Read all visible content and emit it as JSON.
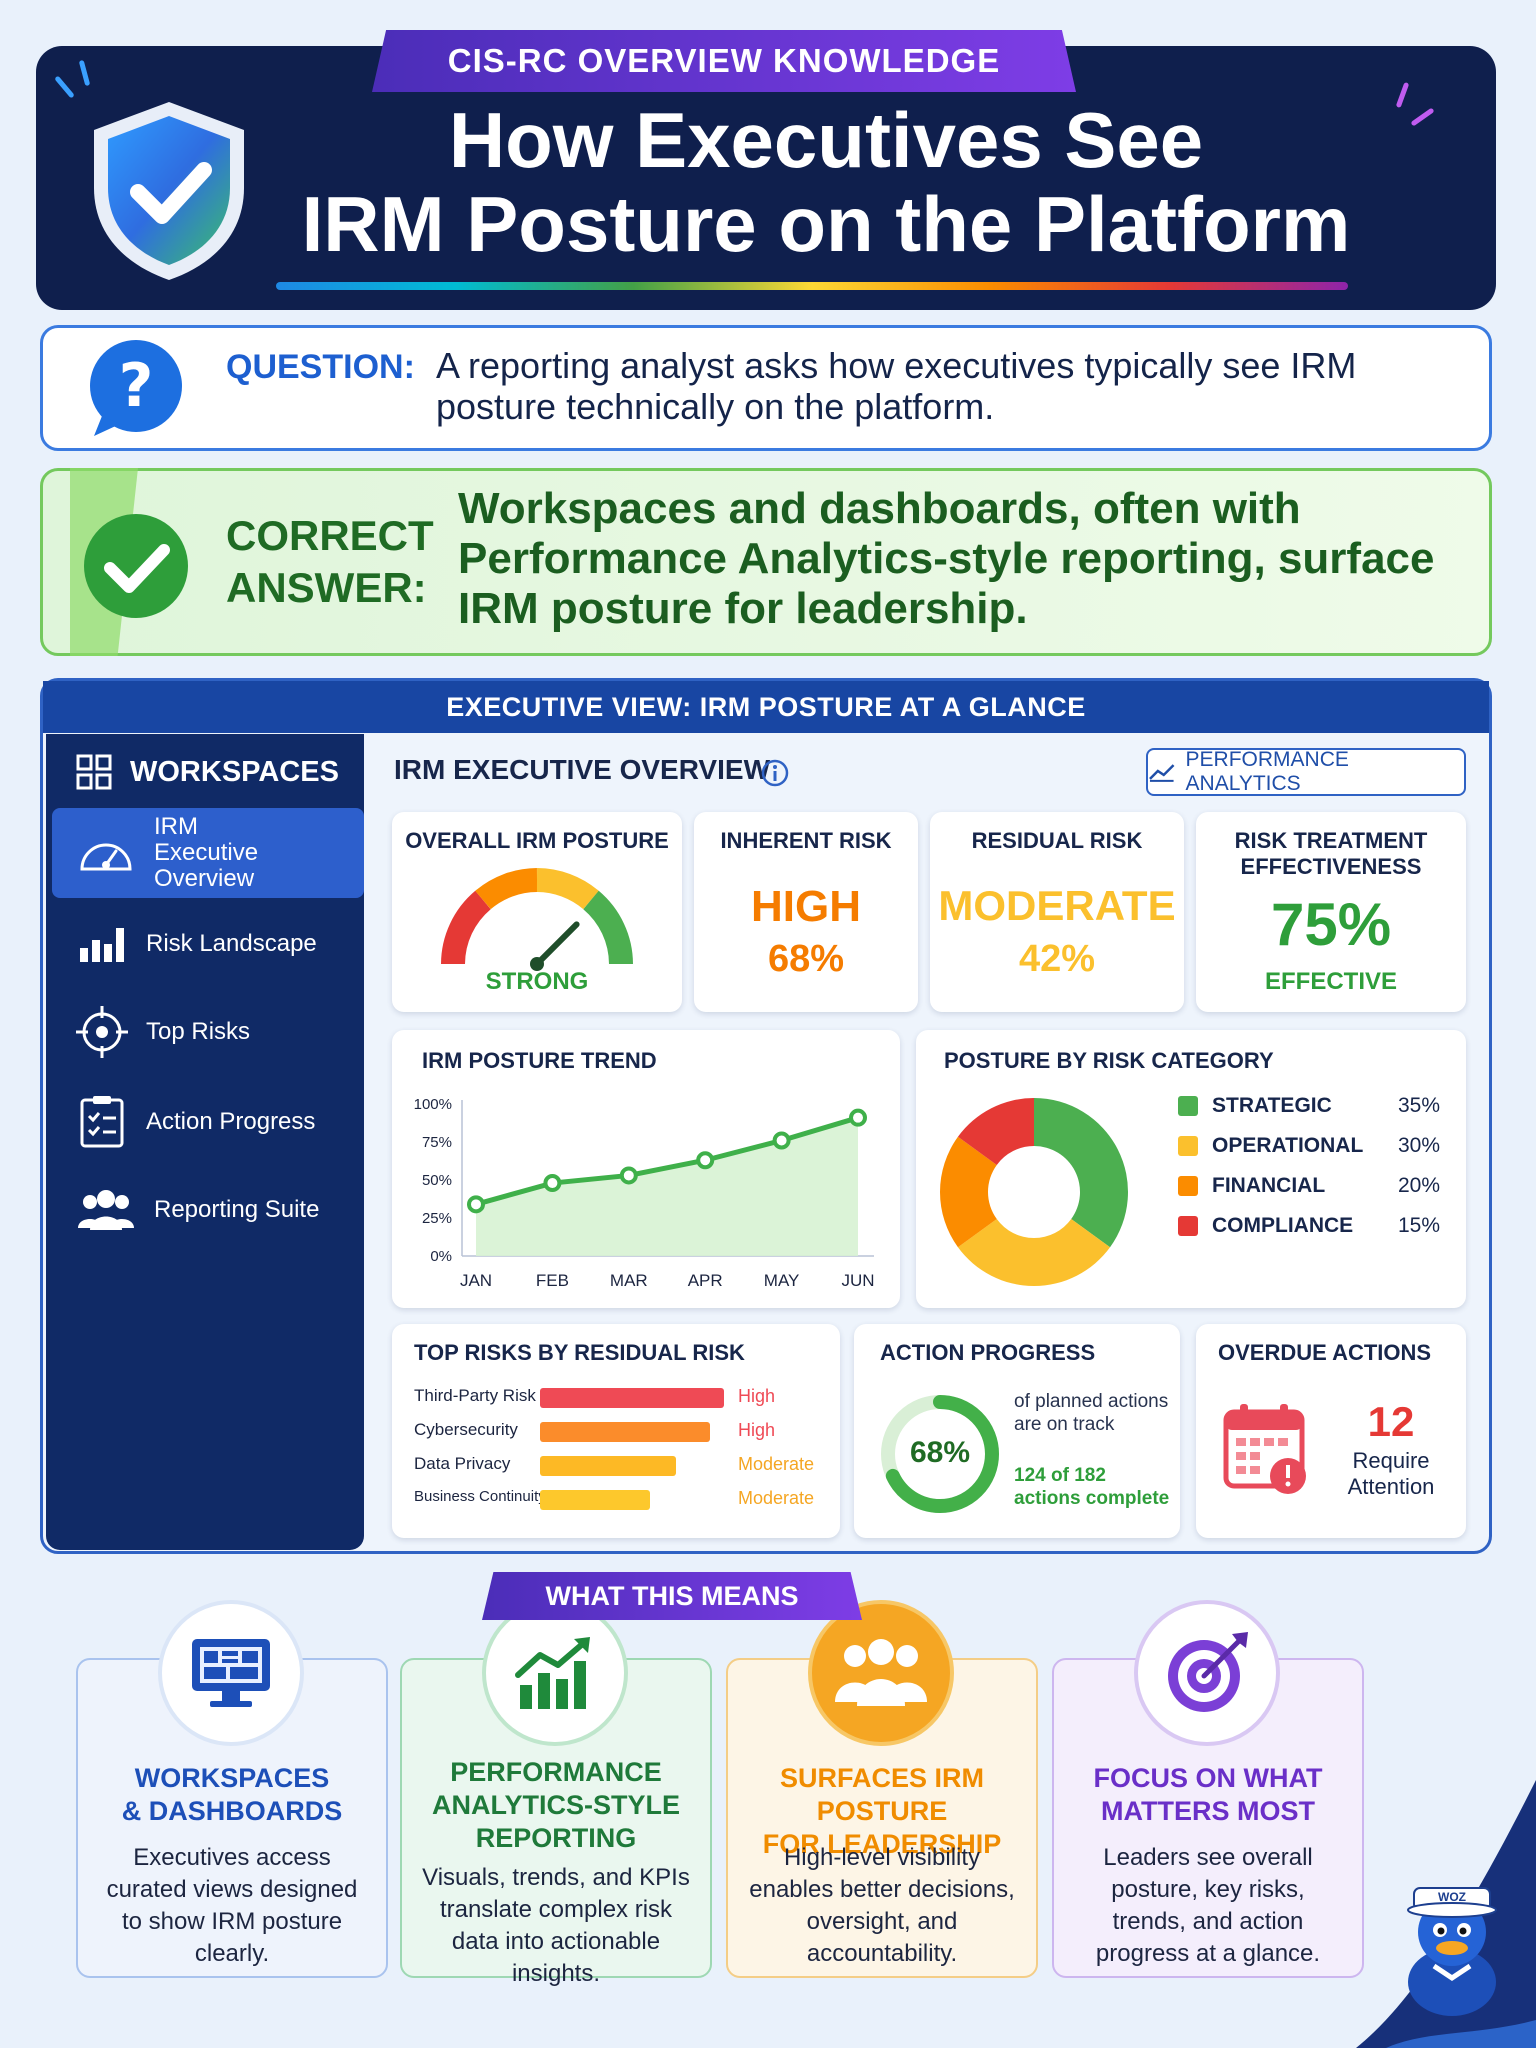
{
  "header": {
    "kicker": "CIS-RC OVERVIEW KNOWLEDGE",
    "title_line1": "How Executives See",
    "title_line2": "IRM Posture on the Platform"
  },
  "question": {
    "label": "QUESTION:",
    "text": "A reporting analyst asks how executives typically see IRM posture technically on the platform."
  },
  "answer": {
    "label_line1": "CORRECT",
    "label_line2": "ANSWER:",
    "text": "Workspaces and dashboards, often with Performance Analytics-style reporting, surface IRM posture for leadership."
  },
  "dashboard": {
    "banner": "EXECUTIVE VIEW: IRM POSTURE AT A GLANCE",
    "sidebar": {
      "heading": "WORKSPACES",
      "items": [
        {
          "label": "IRM Executive Overview",
          "icon": "gauge-icon"
        },
        {
          "label": "Risk Landscape",
          "icon": "bar-chart-icon"
        },
        {
          "label": "Top Risks",
          "icon": "target-icon"
        },
        {
          "label": "Action Progress",
          "icon": "clipboard-checklist-icon"
        },
        {
          "label": "Reporting Suite",
          "icon": "people-group-icon"
        }
      ]
    },
    "overview_title": "IRM EXECUTIVE OVERVIEW",
    "pa_button": "PERFORMANCE ANALYTICS",
    "kpis": {
      "overall": {
        "title": "OVERALL IRM POSTURE",
        "value": "STRONG",
        "gauge_level": 0.75
      },
      "inherent": {
        "title": "INHERENT RISK",
        "level": "HIGH",
        "pct": "68%"
      },
      "residual": {
        "title": "RESIDUAL RISK",
        "level": "MODERATE",
        "pct": "42%"
      },
      "treatment": {
        "title_line1": "RISK TREATMENT",
        "title_line2": "EFFECTIVENESS",
        "pct": "75%",
        "label": "EFFECTIVE"
      }
    },
    "trend": {
      "title": "IRM POSTURE TREND",
      "chart_data": {
        "type": "area",
        "categories": [
          "JAN",
          "FEB",
          "MAR",
          "APR",
          "MAY",
          "JUN"
        ],
        "values": [
          34,
          48,
          53,
          63,
          76,
          91
        ],
        "yticks": [
          "100%",
          "75%",
          "50%",
          "25%",
          "0%"
        ],
        "ylim": [
          0,
          100
        ]
      }
    },
    "category": {
      "title": "POSTURE BY RISK CATEGORY",
      "chart_data": {
        "type": "pie",
        "labels": [
          "STRATEGIC",
          "OPERATIONAL",
          "FINANCIAL",
          "COMPLIANCE"
        ],
        "values": [
          35,
          30,
          20,
          15
        ],
        "display": [
          "35%",
          "30%",
          "20%",
          "15%"
        ],
        "colors": [
          "#4caf50",
          "#fbc02d",
          "#fb8c00",
          "#e53935"
        ]
      }
    },
    "top_risks": {
      "title": "TOP RISKS BY RESIDUAL RISK",
      "items": [
        {
          "name": "Third-Party Risk",
          "level": "High",
          "score": 0.92,
          "color": "#ef4a55"
        },
        {
          "name": "Cybersecurity",
          "level": "High",
          "score": 0.85,
          "color": "#fb8c2b"
        },
        {
          "name": "Data Privacy",
          "level": "Moderate",
          "score": 0.68,
          "color": "#fdb925"
        },
        {
          "name": "Business Continuity",
          "level": "Moderate",
          "score": 0.55,
          "color": "#fdc82c"
        }
      ]
    },
    "action_progress": {
      "title": "ACTION PROGRESS",
      "pct": "68%",
      "fraction": 0.68,
      "note_line1": "of planned actions",
      "note_line2": "are on track",
      "count_line1": "124 of 182",
      "count_line2": "actions complete"
    },
    "overdue": {
      "title": "OVERDUE ACTIONS",
      "count": "12",
      "label_line1": "Require",
      "label_line2": "Attention"
    }
  },
  "what_this_means": {
    "banner": "WHAT THIS MEANS",
    "cards": [
      {
        "title_line1": "WORKSPACES",
        "title_line2": "& DASHBOARDS",
        "title_line3": "",
        "body": "Executives access curated views designed to show IRM posture clearly.",
        "icon": "monitor-dashboard-icon"
      },
      {
        "title_line1": "PERFORMANCE",
        "title_line2": "ANALYTICS-STYLE",
        "title_line3": "REPORTING",
        "body": "Visuals, trends, and KPIs translate complex risk data into actionable insights.",
        "icon": "growth-chart-icon"
      },
      {
        "title_line1": "SURFACES IRM POSTURE",
        "title_line2": "FOR LEADERSHIP",
        "title_line3": "",
        "body": "High-level visibility enables better decisions, oversight, and accountability.",
        "icon": "leadership-group-icon"
      },
      {
        "title_line1": "FOCUS ON WHAT",
        "title_line2": "MATTERS MOST",
        "title_line3": "",
        "body": "Leaders see overall posture, key risks, trends, and action progress at a glance.",
        "icon": "bullseye-target-icon"
      }
    ],
    "mascot_badge": "WOZ"
  },
  "colors": {
    "navy": "#0f1f4d",
    "blue_accent": "#1d5fd0",
    "green": "#1b5e20",
    "high": "#f57c00",
    "moderate": "#fbc02d",
    "effective": "#2e9e3a"
  }
}
